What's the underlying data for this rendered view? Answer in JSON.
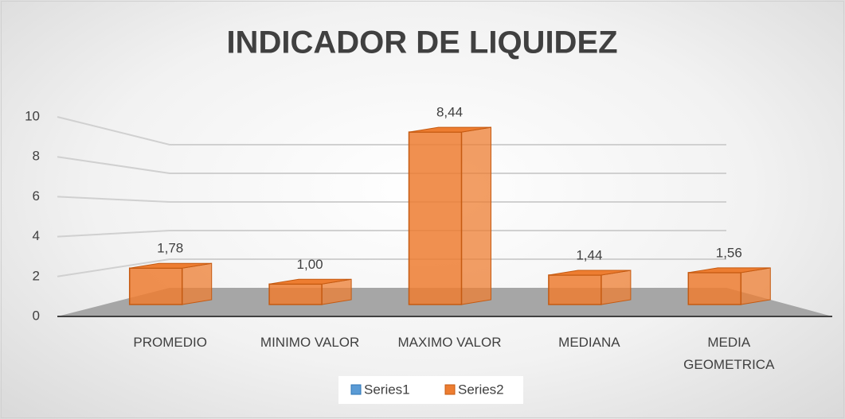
{
  "chart_data": {
    "type": "bar3d",
    "title": "INDICADOR DE LIQUIDEZ",
    "categories": [
      "PROMEDIO",
      "MINIMO VALOR",
      "MAXIMO VALOR",
      "MEDIANA",
      "MEDIA GEOMETRICA"
    ],
    "series": [
      {
        "name": "Series1",
        "color": "#5b9bd5",
        "values": [
          null,
          null,
          null,
          null,
          null
        ]
      },
      {
        "name": "Series2",
        "color": "#ed7d31",
        "values": [
          1.78,
          1.0,
          8.44,
          1.44,
          1.56
        ],
        "value_labels": [
          "1,78",
          "1,00",
          "8,44",
          "1,44",
          "1,56"
        ]
      }
    ],
    "ylim": [
      0,
      10
    ],
    "yticks": [
      0,
      2,
      4,
      6,
      8,
      10
    ],
    "grid": true,
    "legend": "bottom"
  }
}
